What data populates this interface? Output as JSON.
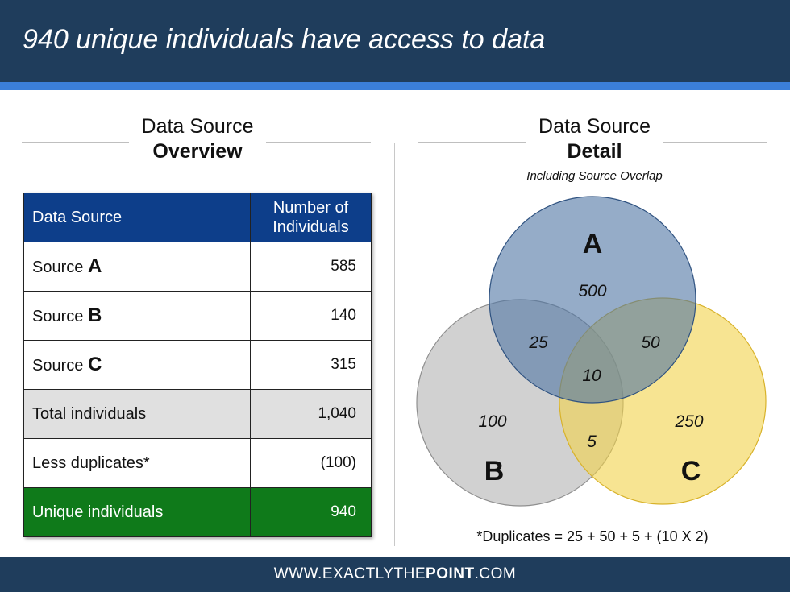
{
  "header": {
    "title": "940 unique individuals have access to data"
  },
  "overview": {
    "line1": "Data Source",
    "line2": "Overview"
  },
  "detail": {
    "line1": "Data Source",
    "line2": "Detail",
    "subtitle": "Including Source Overlap"
  },
  "table": {
    "headers": [
      "Data Source",
      "Number of",
      "Individuals"
    ],
    "rows": [
      {
        "prefix": "Source ",
        "letter": "A",
        "value": "585"
      },
      {
        "prefix": "Source ",
        "letter": "B",
        "value": "140"
      },
      {
        "prefix": "Source ",
        "letter": "C",
        "value": "315"
      },
      {
        "label": "Total individuals",
        "value": "1,040"
      },
      {
        "label": "Less duplicates*",
        "value": "(100)"
      },
      {
        "label": "Unique individuals",
        "value": "940"
      }
    ]
  },
  "venn": {
    "sets": [
      {
        "label": "A",
        "color": "#6f8fb5"
      },
      {
        "label": "B",
        "color": "#b3b3b3"
      },
      {
        "label": "C",
        "color": "#f2d24a"
      }
    ],
    "regions": {
      "a_only": "500",
      "b_only": "100",
      "c_only": "250",
      "ab": "25",
      "ac": "50",
      "bc": "5",
      "abc": "10"
    },
    "footnote": "*Duplicates = 25 + 50 + 5 + (10 X 2)"
  },
  "footer": {
    "pre": "WWW.",
    "mid1": "EXACTLY",
    "mid2": "THE",
    "bold": "POINT",
    "post": ".COM"
  },
  "colors": {
    "header": "#1f3d5c",
    "accent": "#3b7fd9",
    "table_header": "#0d3e8a",
    "total_row": "#e0e0e0",
    "unique_row": "#0f7a1a"
  }
}
